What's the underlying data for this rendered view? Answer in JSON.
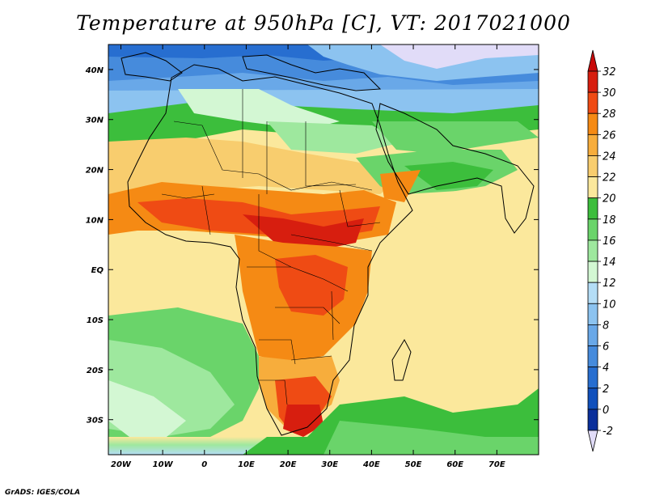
{
  "title": "Temperature at 950hPa [C], VT: 2017021000",
  "credit": "GrADS: IGES/COLA",
  "map": {
    "lon_range": [
      -23,
      80
    ],
    "lat_range": [
      -37,
      45
    ],
    "lat_labels": [
      {
        "value": 40,
        "label": "40N"
      },
      {
        "value": 30,
        "label": "30N"
      },
      {
        "value": 20,
        "label": "20N"
      },
      {
        "value": 10,
        "label": "10N"
      },
      {
        "value": 0,
        "label": "EQ"
      },
      {
        "value": -10,
        "label": "10S"
      },
      {
        "value": -20,
        "label": "20S"
      },
      {
        "value": -30,
        "label": "30S"
      }
    ],
    "lon_labels": [
      {
        "value": -20,
        "label": "20W"
      },
      {
        "value": -10,
        "label": "10W"
      },
      {
        "value": 0,
        "label": "0"
      },
      {
        "value": 10,
        "label": "10E"
      },
      {
        "value": 20,
        "label": "20E"
      },
      {
        "value": 30,
        "label": "30E"
      },
      {
        "value": 40,
        "label": "40E"
      },
      {
        "value": 50,
        "label": "50E"
      },
      {
        "value": 60,
        "label": "60E"
      },
      {
        "value": 70,
        "label": "70E"
      }
    ]
  },
  "colorbar": {
    "labels": [
      "32",
      "30",
      "28",
      "26",
      "24",
      "22",
      "20",
      "18",
      "16",
      "14",
      "12",
      "10",
      "8",
      "6",
      "4",
      "2",
      "0",
      "-2"
    ],
    "colors": [
      "#d71e0f",
      "#ef4b14",
      "#f58a14",
      "#f7ad3c",
      "#f8cd6e",
      "#fbe89c",
      "#3cbe3c",
      "#6ad46a",
      "#9ee89e",
      "#d3f7d3",
      "#b4ddf6",
      "#8cc3f0",
      "#69a8e8",
      "#468bdc",
      "#276ed0",
      "#1050bc",
      "#0a2f9b"
    ],
    "top_triangle_color": "#c80a0a",
    "bottom_triangle_color": "#e1dcf8"
  }
}
